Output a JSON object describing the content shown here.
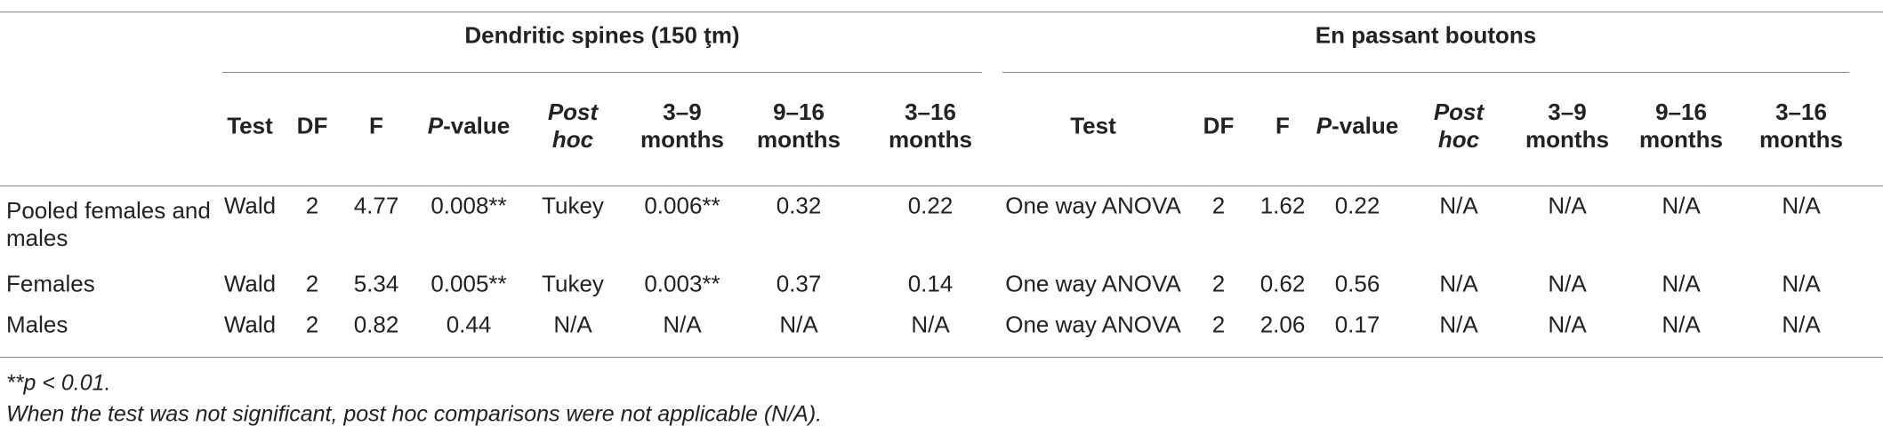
{
  "table": {
    "groups": [
      {
        "title": "Dendritic spines (150 ţm)",
        "columns": [
          "Test",
          "DF",
          "F",
          {
            "italic": "P",
            "text": "-value"
          },
          {
            "italic": "Post hoc"
          },
          "3–9 months",
          "9–16 months",
          "3–16 months"
        ]
      },
      {
        "title": "En passant boutons",
        "columns": [
          "Test",
          "DF",
          "F",
          {
            "italic": "P",
            "text": "-value"
          },
          {
            "italic": "Post hoc"
          },
          "3–9 months",
          "9–16 months",
          "3–16 months"
        ]
      }
    ],
    "rows": [
      {
        "label": "Pooled females and males",
        "cells": [
          "Wald",
          2,
          4.77,
          "0.008**",
          "Tukey",
          "0.006**",
          0.32,
          0.22,
          "One way ANOVA",
          2,
          1.62,
          0.22,
          "N/A",
          "N/A",
          "N/A",
          "N/A"
        ]
      },
      {
        "label": "Females",
        "cells": [
          "Wald",
          2,
          5.34,
          "0.005**",
          "Tukey",
          "0.003**",
          0.37,
          0.14,
          "One way ANOVA",
          2,
          0.62,
          0.56,
          "N/A",
          "N/A",
          "N/A",
          "N/A"
        ]
      },
      {
        "label": "Males",
        "cells": [
          "Wald",
          2,
          0.82,
          0.44,
          "N/A",
          "N/A",
          "N/A",
          "N/A",
          "One way ANOVA",
          2,
          2.06,
          0.17,
          "N/A",
          "N/A",
          "N/A",
          "N/A"
        ]
      }
    ],
    "footnotes": [
      "**p < 0.01.",
      "When the test was not significant, post hoc comparisons were not applicable (N/A)."
    ]
  }
}
